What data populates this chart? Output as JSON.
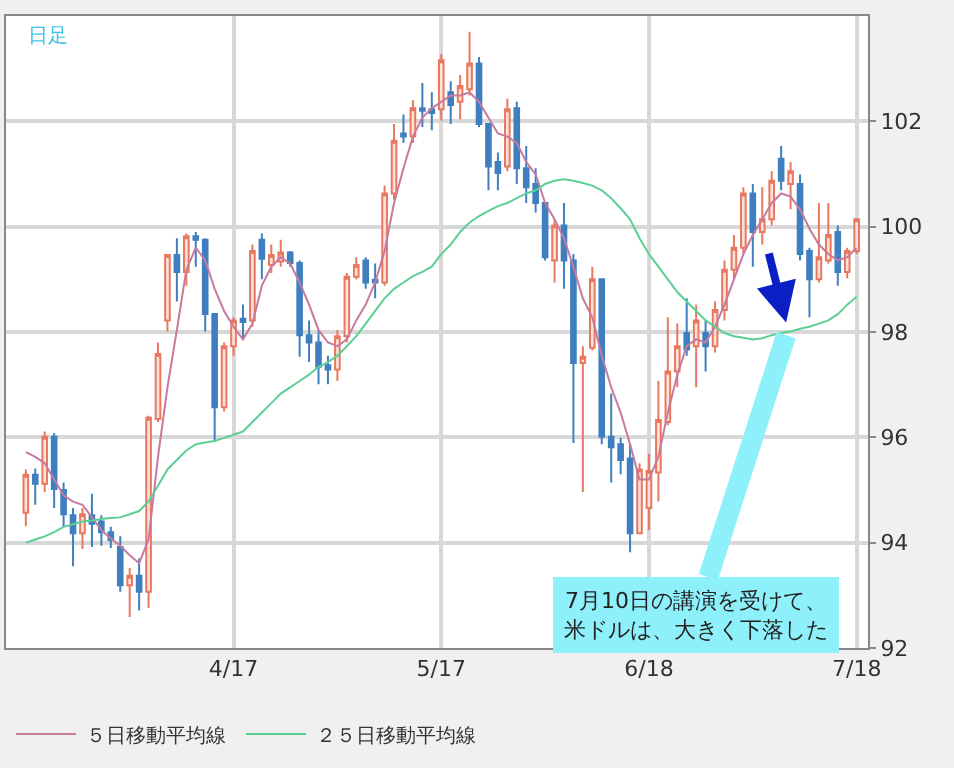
{
  "chart_data": {
    "type": "candlestick",
    "annotations": [
      "日足",
      "7月10日の講演を受けて、米ドルは、大きく下落した"
    ],
    "categories": [
      null,
      null,
      null,
      null,
      null,
      null,
      null,
      null,
      null,
      null,
      null,
      null,
      null,
      null,
      null,
      null,
      null,
      null,
      null,
      null,
      null,
      null,
      "4/17",
      null,
      null,
      null,
      null,
      null,
      null,
      null,
      null,
      null,
      null,
      null,
      null,
      null,
      null,
      null,
      null,
      null,
      null,
      null,
      null,
      null,
      "5/17",
      null,
      null,
      null,
      null,
      null,
      null,
      null,
      null,
      null,
      null,
      null,
      null,
      null,
      null,
      null,
      null,
      null,
      null,
      null,
      null,
      null,
      "6/18",
      null,
      null,
      null,
      null,
      null,
      null,
      null,
      null,
      null,
      null,
      null,
      null,
      null,
      null,
      null,
      null,
      null,
      null,
      null,
      null,
      null,
      "7/18"
    ],
    "ohlc": [
      [
        94.57,
        95.39,
        94.31,
        95.29
      ],
      [
        95.29,
        95.41,
        94.72,
        95.12
      ],
      [
        95.12,
        96.11,
        94.96,
        96.01
      ],
      [
        96.01,
        96.08,
        94.66,
        95.02
      ],
      [
        95.0,
        95.14,
        94.3,
        94.54
      ],
      [
        94.52,
        94.66,
        93.55,
        94.18
      ],
      [
        94.18,
        94.66,
        93.88,
        94.54
      ],
      [
        94.52,
        94.93,
        93.92,
        94.36
      ],
      [
        94.4,
        94.52,
        93.94,
        94.2
      ],
      [
        94.2,
        94.3,
        93.9,
        94.05
      ],
      [
        93.92,
        94.12,
        93.07,
        93.19
      ],
      [
        93.19,
        93.52,
        92.59,
        93.37
      ],
      [
        93.37,
        93.7,
        92.71,
        93.07
      ],
      [
        93.07,
        96.41,
        92.76,
        96.37
      ],
      [
        96.35,
        97.8,
        96.29,
        97.58
      ],
      [
        98.22,
        99.48,
        98.01,
        99.46
      ],
      [
        99.46,
        99.78,
        98.58,
        99.14
      ],
      [
        99.14,
        99.87,
        98.88,
        99.82
      ],
      [
        99.82,
        99.9,
        99.24,
        99.75
      ],
      [
        99.75,
        99.78,
        98.01,
        98.34
      ],
      [
        98.34,
        98.34,
        95.93,
        96.57
      ],
      [
        96.57,
        97.8,
        96.49,
        97.73
      ],
      [
        97.73,
        98.28,
        97.55,
        98.22
      ],
      [
        98.25,
        98.52,
        97.86,
        98.19
      ],
      [
        98.22,
        99.66,
        98.1,
        99.54
      ],
      [
        99.75,
        99.87,
        99.0,
        99.39
      ],
      [
        99.27,
        99.66,
        99.12,
        99.46
      ],
      [
        99.34,
        99.75,
        99.24,
        99.51
      ],
      [
        99.51,
        99.54,
        99.24,
        99.31
      ],
      [
        99.31,
        99.36,
        97.53,
        97.94
      ],
      [
        97.94,
        98.22,
        97.43,
        97.8
      ],
      [
        97.8,
        98.04,
        97.01,
        97.34
      ],
      [
        97.37,
        97.55,
        97.01,
        97.29
      ],
      [
        97.29,
        98.04,
        97.07,
        97.92
      ],
      [
        97.92,
        99.12,
        97.8,
        99.05
      ],
      [
        99.05,
        99.42,
        99.0,
        99.27
      ],
      [
        99.36,
        99.42,
        98.82,
        98.94
      ],
      [
        98.99,
        99.3,
        98.64,
        98.94
      ],
      [
        98.94,
        100.78,
        98.88,
        100.63
      ],
      [
        100.63,
        101.95,
        100.51,
        101.63
      ],
      [
        101.77,
        102.13,
        101.59,
        101.71
      ],
      [
        101.71,
        102.4,
        101.59,
        102.25
      ],
      [
        102.25,
        102.73,
        101.89,
        102.2
      ],
      [
        102.23,
        102.55,
        101.83,
        102.16
      ],
      [
        102.23,
        103.28,
        102.01,
        103.16
      ],
      [
        102.55,
        102.76,
        101.95,
        102.31
      ],
      [
        102.37,
        102.88,
        102.04,
        102.67
      ],
      [
        102.61,
        103.7,
        102.49,
        103.1
      ],
      [
        103.1,
        103.22,
        101.89,
        101.95
      ],
      [
        101.95,
        101.95,
        100.69,
        101.14
      ],
      [
        101.23,
        101.41,
        100.69,
        101.02
      ],
      [
        101.14,
        102.43,
        101.05,
        102.23
      ],
      [
        102.25,
        102.37,
        100.81,
        101.11
      ],
      [
        101.11,
        101.53,
        100.45,
        100.75
      ],
      [
        100.81,
        101.11,
        100.27,
        100.45
      ],
      [
        100.45,
        100.45,
        99.36,
        99.42
      ],
      [
        99.36,
        100.14,
        98.94,
        100.02
      ],
      [
        100.02,
        100.45,
        98.82,
        99.36
      ],
      [
        99.36,
        99.48,
        95.89,
        97.41
      ],
      [
        97.41,
        97.73,
        94.96,
        97.53
      ],
      [
        97.7,
        99.24,
        97.65,
        99.0
      ],
      [
        99.0,
        99.0,
        95.87,
        96.01
      ],
      [
        96.01,
        96.83,
        95.14,
        95.81
      ],
      [
        95.87,
        95.99,
        95.3,
        95.57
      ],
      [
        95.6,
        95.87,
        93.82,
        94.18
      ],
      [
        94.18,
        95.51,
        94.16,
        95.39
      ],
      [
        94.66,
        95.69,
        94.24,
        95.36
      ],
      [
        95.33,
        97.07,
        94.78,
        96.33
      ],
      [
        96.29,
        98.28,
        96.23,
        97.25
      ],
      [
        97.25,
        98.16,
        96.95,
        97.73
      ],
      [
        97.98,
        98.64,
        97.55,
        97.67
      ],
      [
        97.73,
        98.52,
        96.95,
        98.22
      ],
      [
        97.98,
        98.22,
        97.25,
        97.73
      ],
      [
        97.73,
        98.58,
        97.61,
        98.42
      ],
      [
        98.42,
        99.36,
        98.22,
        99.18
      ],
      [
        99.18,
        99.84,
        99.0,
        99.6
      ],
      [
        99.6,
        100.75,
        99.48,
        100.63
      ],
      [
        100.63,
        100.81,
        99.24,
        99.9
      ],
      [
        99.9,
        100.75,
        99.66,
        100.14
      ],
      [
        100.14,
        101.05,
        100.02,
        100.87
      ],
      [
        101.29,
        101.53,
        100.69,
        100.87
      ],
      [
        100.81,
        101.23,
        100.33,
        101.05
      ],
      [
        100.81,
        100.99,
        99.36,
        99.48
      ],
      [
        99.54,
        99.6,
        98.28,
        99.0
      ],
      [
        99.0,
        100.45,
        98.94,
        99.42
      ],
      [
        99.36,
        100.45,
        99.3,
        99.84
      ],
      [
        99.9,
        100.02,
        98.88,
        99.14
      ],
      [
        99.14,
        99.6,
        99.02,
        99.54
      ],
      [
        99.54,
        100.14,
        99.48,
        100.14
      ]
    ],
    "series": [
      {
        "name": "５日移動平均線",
        "type": "line",
        "color": "#c87a9e",
        "values": [
          95.72,
          95.63,
          95.51,
          95.2,
          94.9,
          94.78,
          94.72,
          94.48,
          94.24,
          94.08,
          93.94,
          93.76,
          93.61,
          94.06,
          95.63,
          96.95,
          98.04,
          99.18,
          99.6,
          99.36,
          98.82,
          98.4,
          98.1,
          97.86,
          98.16,
          98.88,
          99.24,
          99.42,
          99.3,
          98.94,
          98.52,
          98.04,
          97.8,
          97.73,
          97.86,
          98.22,
          98.52,
          98.94,
          99.54,
          100.45,
          101.11,
          101.71,
          102.07,
          102.25,
          102.37,
          102.49,
          102.49,
          102.55,
          102.37,
          102.07,
          101.77,
          101.71,
          101.59,
          101.23,
          100.99,
          100.45,
          100.14,
          99.78,
          99.24,
          98.64,
          98.28,
          97.55,
          96.95,
          96.47,
          95.87,
          95.2,
          95.2,
          95.63,
          96.47,
          97.19,
          97.73,
          97.86,
          97.8,
          98.1,
          98.52,
          99.0,
          99.48,
          99.84,
          100.14,
          100.45,
          100.63,
          100.57,
          100.33,
          99.96,
          99.66,
          99.48,
          99.36,
          99.42,
          99.6
        ]
      },
      {
        "name": "２５日移動平均線",
        "type": "line",
        "color": "#5ccf95",
        "values": [
          94.0,
          94.06,
          94.12,
          94.2,
          94.3,
          94.35,
          94.4,
          94.42,
          94.45,
          94.47,
          94.48,
          94.54,
          94.6,
          94.78,
          95.08,
          95.39,
          95.57,
          95.75,
          95.87,
          95.9,
          95.93,
          95.99,
          96.05,
          96.11,
          96.29,
          96.47,
          96.65,
          96.83,
          96.95,
          97.07,
          97.19,
          97.34,
          97.43,
          97.55,
          97.73,
          97.92,
          98.16,
          98.4,
          98.64,
          98.82,
          98.94,
          99.06,
          99.14,
          99.24,
          99.48,
          99.66,
          99.9,
          100.08,
          100.2,
          100.3,
          100.39,
          100.45,
          100.54,
          100.63,
          100.69,
          100.81,
          100.87,
          100.9,
          100.87,
          100.83,
          100.78,
          100.69,
          100.54,
          100.35,
          100.14,
          99.78,
          99.48,
          99.24,
          99.0,
          98.76,
          98.58,
          98.4,
          98.22,
          98.1,
          97.98,
          97.92,
          97.89,
          97.86,
          97.88,
          97.94,
          97.98,
          98.01,
          98.06,
          98.1,
          98.16,
          98.22,
          98.34,
          98.52,
          98.67
        ]
      }
    ],
    "ylim": [
      92,
      104
    ],
    "yticks": [
      92,
      94,
      96,
      98,
      100,
      102
    ],
    "grid": true,
    "legend": "bottom"
  }
}
